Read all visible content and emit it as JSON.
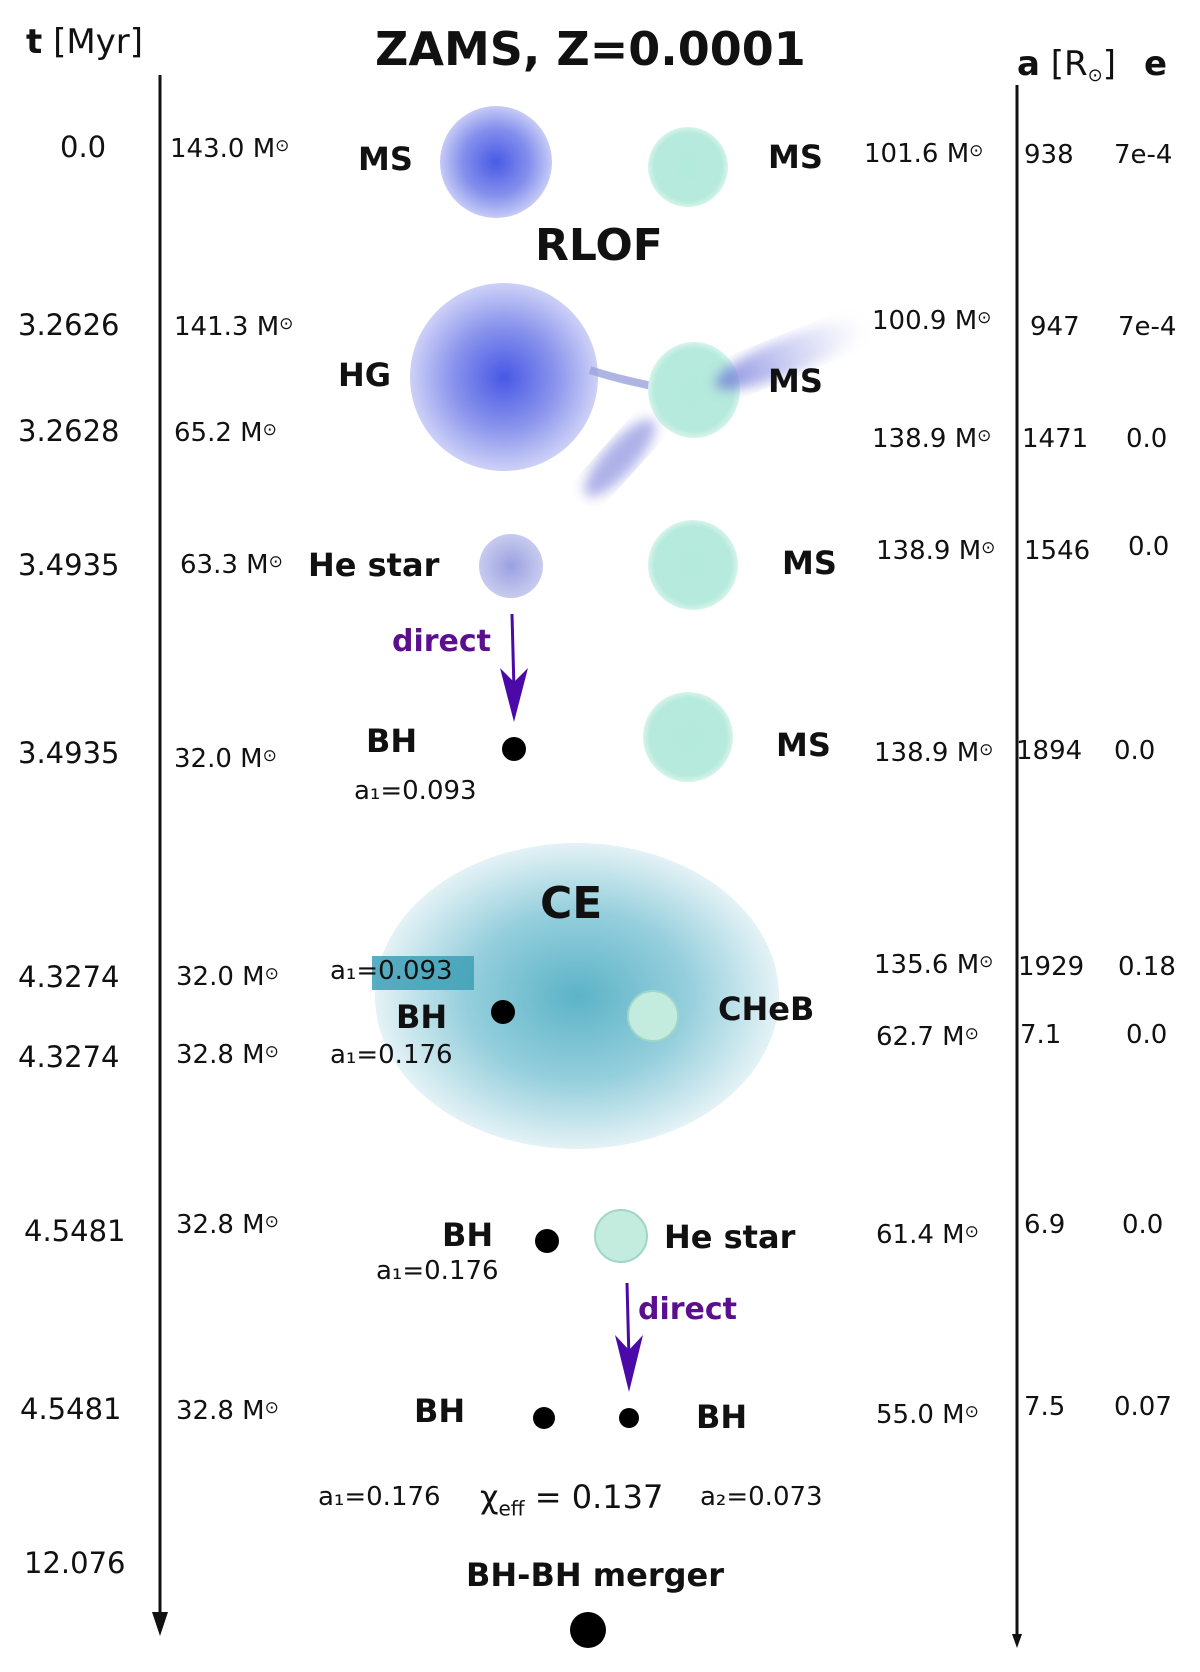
{
  "title": "ZAMS, Z=0.0001",
  "header": {
    "time_label": "t",
    "time_unit": "[Myr]",
    "sep_label": "a",
    "sep_unit_open": "[R",
    "sep_unit_close": "]",
    "ecc_label": "e",
    "sun_symbol": "⊙"
  },
  "phases": {
    "rlof": "RLOF",
    "ce": "CE"
  },
  "rows": [
    {
      "t": "0.0",
      "m1": "143.0 M",
      "m2": "101.6 M",
      "a": "938",
      "e": "7e-4",
      "s1": "MS",
      "s2": "MS"
    },
    {
      "t": "3.2626",
      "m1": "141.3 M",
      "m2": "100.9 M",
      "a": "947",
      "e": "7e-4",
      "s1": "HG",
      "s2": "MS"
    },
    {
      "t": "3.2628",
      "m1": "65.2 M",
      "m2": "138.9 M",
      "a": "1471",
      "e": "0.0"
    },
    {
      "t": "3.4935",
      "m1": "63.3 M",
      "m2": "138.9 M",
      "a": "1546",
      "e": "0.0",
      "s1": "He star",
      "s2": "MS"
    },
    {
      "t": "3.4935",
      "m1": "32.0 M",
      "m2": "138.9 M",
      "a": "1894",
      "e": "0.0",
      "s1": "BH",
      "s2": "MS",
      "spin": "a₁=0.093"
    },
    {
      "t": "4.3274",
      "m1": "32.0 M",
      "m2": "135.6 M",
      "a": "1929",
      "e": "0.18",
      "spin": "a₁=0.093"
    },
    {
      "t": "4.3274",
      "m1": "32.8 M",
      "m2": "62.7 M",
      "a": "7.1",
      "e": "0.0",
      "s1": "BH",
      "s2": "CHeB",
      "spin": "a₁=0.176"
    },
    {
      "t": "4.5481",
      "m1": "32.8 M",
      "m2": "61.4 M",
      "a": "6.9",
      "e": "0.0",
      "s1": "BH",
      "s2": "He star",
      "spin": "a₁=0.176"
    },
    {
      "t": "4.5481",
      "m1": "32.8 M",
      "m2": "55.0 M",
      "a": "7.5",
      "e": "0.07",
      "s1": "BH",
      "s2": "BH"
    }
  ],
  "direct_label": "direct",
  "final": {
    "a1": "a₁=0.176",
    "chi": "χ",
    "chi_sub": "eff",
    "chi_value": " = 0.137",
    "a2": "a₂=0.073",
    "t": "12.076",
    "merger": "BH-BH merger"
  },
  "colors": {
    "primary_star": "#5060e0",
    "companion_star": "#b4eadb",
    "common_envelope": "#3fa6bd",
    "direct_arrow": "#4b0aa8",
    "direct_text": "#5b0f8e",
    "black_hole": "#000000"
  }
}
